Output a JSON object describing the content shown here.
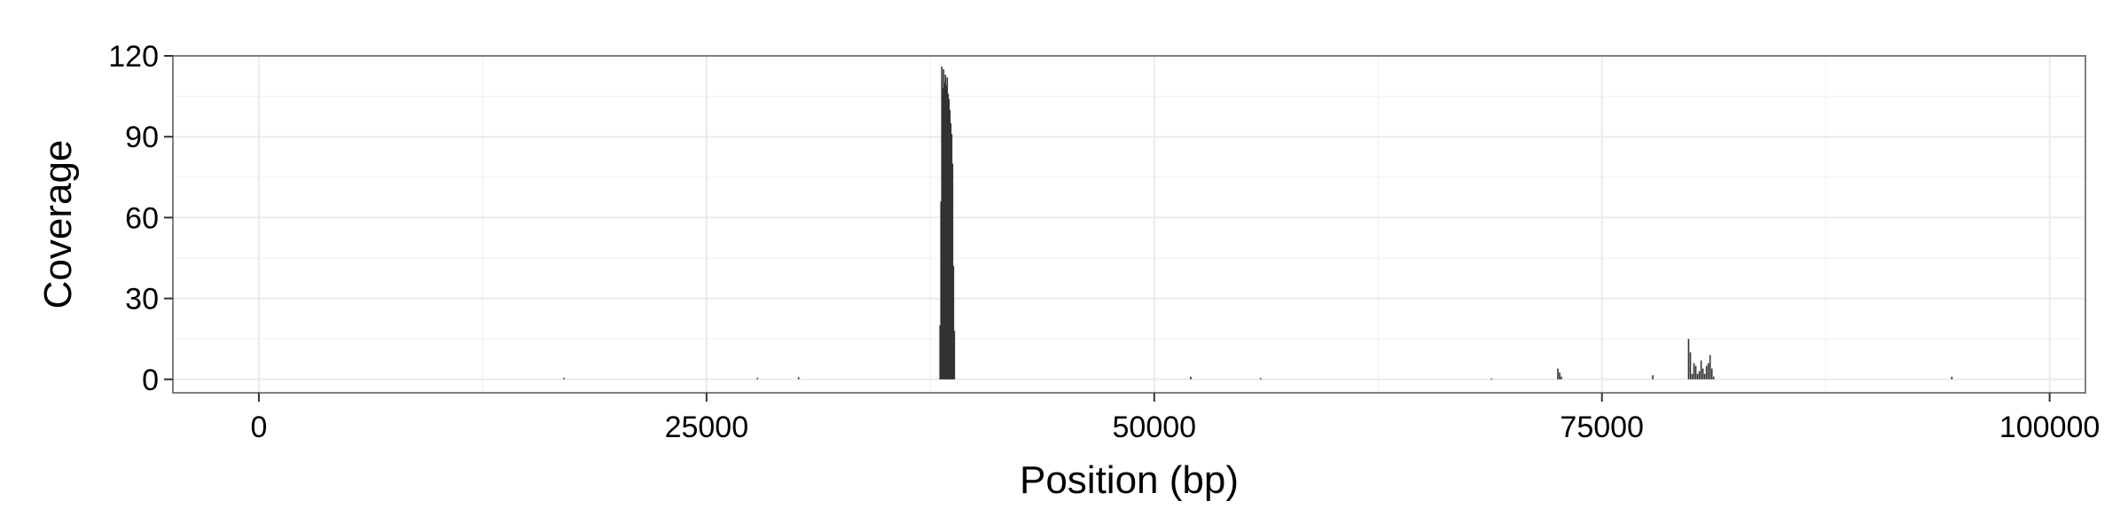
{
  "chart_data": {
    "type": "area",
    "title": "",
    "xlabel": "Position (bp)",
    "ylabel": "Coverage",
    "xlim": [
      -4800,
      102000
    ],
    "ylim": [
      -5,
      120
    ],
    "x_ticks": [
      0,
      25000,
      50000,
      75000,
      100000
    ],
    "x_tick_labels": [
      "0",
      "25000",
      "50000",
      "75000",
      "100000"
    ],
    "y_ticks": [
      0,
      30,
      60,
      90,
      120
    ],
    "y_tick_labels": [
      "0",
      "30",
      "60",
      "90",
      "120"
    ],
    "grid": true,
    "legend": "none",
    "colors": {
      "fill": "#333333",
      "panel_border": "#7f7f7f",
      "grid": "#ebebeb"
    },
    "series": [
      {
        "x": [
          17000,
          27800,
          30100,
          38000,
          38050,
          38100,
          38150,
          38200,
          38250,
          38300,
          38350,
          38400,
          38450,
          38500,
          38550,
          38600,
          38650,
          38700,
          38750,
          38800,
          52000,
          55900,
          68800,
          72500,
          72600,
          72700,
          77800,
          79800,
          79900,
          80000,
          80100,
          80200,
          80300,
          80400,
          80500,
          80600,
          80700,
          80800,
          80900,
          81000,
          81100,
          81200,
          94500
        ],
        "y": [
          0.5,
          0.5,
          0.8,
          20,
          66,
          116,
          108,
          115,
          110,
          113,
          109,
          112,
          106,
          104,
          100,
          95,
          91,
          80,
          42,
          18,
          1,
          0.5,
          0.3,
          4,
          2.5,
          1,
          1.5,
          15,
          10,
          2,
          6,
          5,
          2,
          3,
          7,
          4,
          2,
          5,
          6,
          9,
          4,
          1,
          1
        ]
      }
    ]
  }
}
